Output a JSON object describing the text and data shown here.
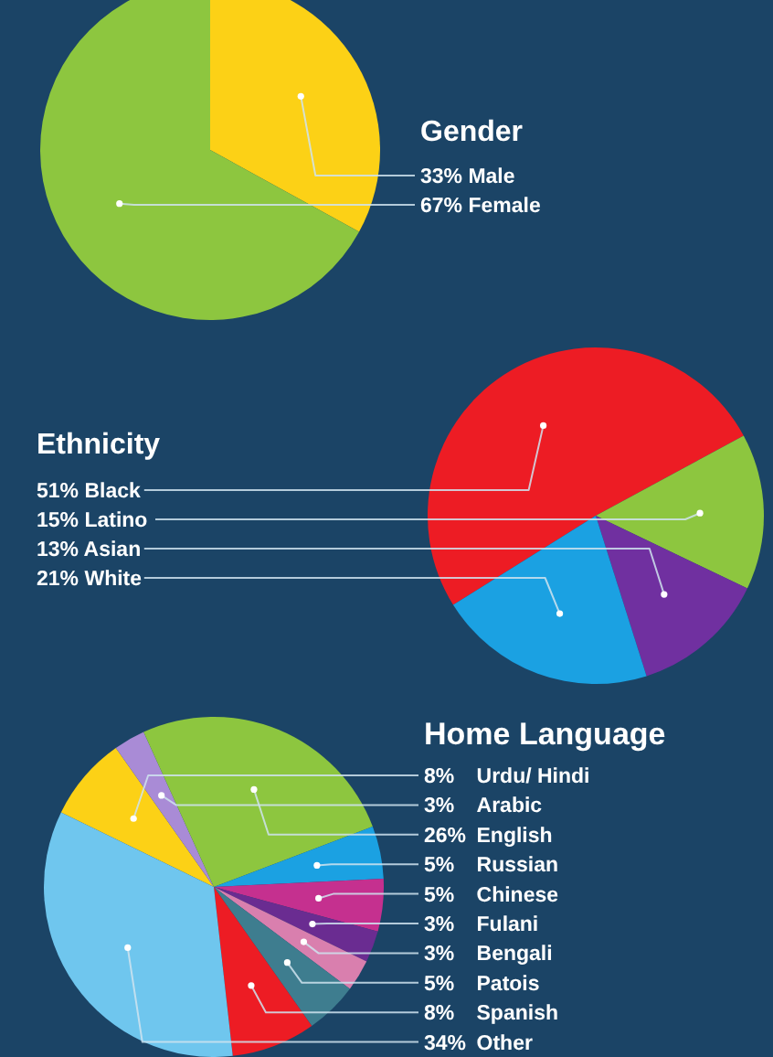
{
  "chart_data": [
    {
      "type": "pie",
      "title": "Gender",
      "categories": [
        "Male",
        "Female"
      ],
      "values": [
        33,
        67
      ],
      "value_labels": [
        "33%",
        "67%"
      ],
      "colors": [
        "#fcd116",
        "#8dc63f"
      ]
    },
    {
      "type": "pie",
      "title": "Ethnicity",
      "categories": [
        "Black",
        "Latino",
        "Asian",
        "White"
      ],
      "values": [
        51,
        15,
        13,
        21
      ],
      "value_labels": [
        "51%",
        "15%",
        "13%",
        "21%"
      ],
      "colors": [
        "#ed1c24",
        "#8dc63f",
        "#7030a0",
        "#1ba1e2"
      ]
    },
    {
      "type": "pie",
      "title": "Home Language",
      "categories": [
        "Urdu/ Hindi",
        "Arabic",
        "English",
        "Russian",
        "Chinese",
        "Fulani",
        "Bengali",
        "Patois",
        "Spanish",
        "Other"
      ],
      "values": [
        8,
        3,
        26,
        5,
        5,
        3,
        3,
        5,
        8,
        34
      ],
      "value_labels": [
        "8%",
        "3%",
        "26%",
        "5%",
        "5%",
        "3%",
        "3%",
        "5%",
        "8%",
        "34%"
      ],
      "colors": [
        "#fcd116",
        "#a98bd6",
        "#8dc63f",
        "#1ba1e2",
        "#c5308f",
        "#6a2c91",
        "#d97fae",
        "#3e7d8f",
        "#ed1c24",
        "#6fc6ee"
      ]
    }
  ]
}
